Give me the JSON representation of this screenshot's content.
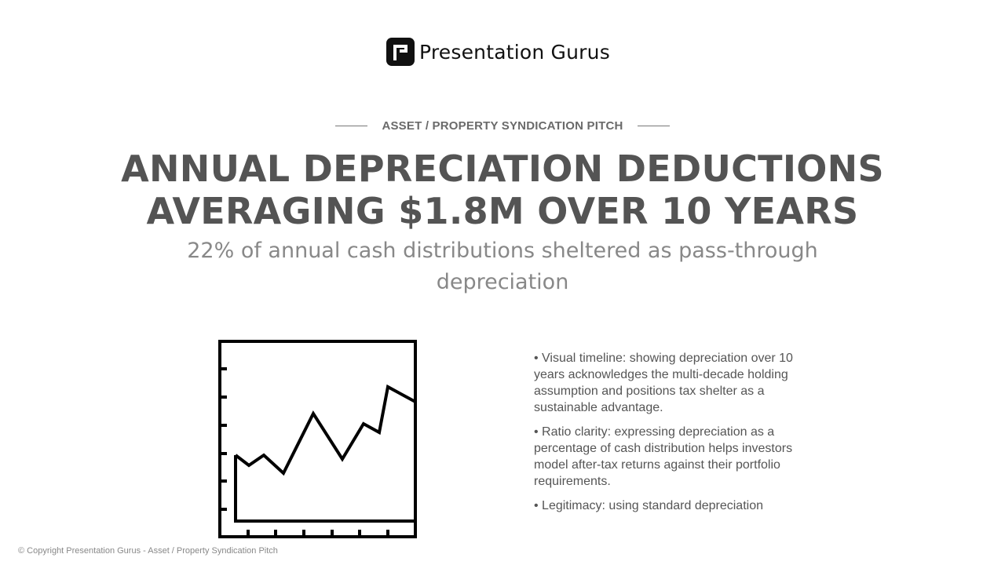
{
  "brand": {
    "logo_icon": "presentation-gurus-logo-icon",
    "name": "Presentation Gurus",
    "color": "#111111"
  },
  "slide": {
    "kicker": "ASSET / PROPERTY SYNDICATION PITCH",
    "headline_line1": "ANNUAL DEPRECIATION DEDUCTIONS",
    "headline_line2": "AVERAGING $1.8M OVER 10 YEARS",
    "subhead": "22% of annual cash distributions sheltered as pass-through depreciation",
    "illustration_icon": "line-chart-icon",
    "bullets": [
      "• Visual timeline: showing depreciation over 10 years acknowledges the multi-decade holding assumption and positions tax shelter as a sustainable advantage.",
      "• Ratio clarity: expressing depreciation as a percentage of cash distribution helps investors model after-tax returns against their portfolio requirements.",
      "• Legitimacy: using standard depreciation"
    ]
  },
  "footer": {
    "text": "© Copyright Presentation Gurus - Asset / Property Syndication Pitch"
  },
  "colors": {
    "headline": "#545454",
    "subhead": "#888888",
    "body": "#555555",
    "kicker": "#6a6a6a"
  }
}
